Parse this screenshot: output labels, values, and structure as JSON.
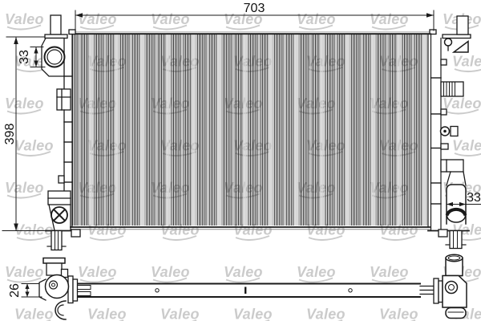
{
  "brand_watermark": {
    "text": "Valeo"
  },
  "colors": {
    "line": "#1a1a1a",
    "watermark": "#cbcbcb",
    "fin_dark": "#1f1f1f",
    "fin_mid": "#8f8f8f",
    "fin_light": "#c6c6c6",
    "background": "#ffffff"
  },
  "diagram": {
    "type": "technical-drawing",
    "subject": "automotive radiator, front view and bottom view",
    "dimensions": {
      "overall_width": "703",
      "core_height": "398",
      "inlet_diameter": "33",
      "outlet_diameter": "33",
      "tube_depth": "26"
    }
  }
}
